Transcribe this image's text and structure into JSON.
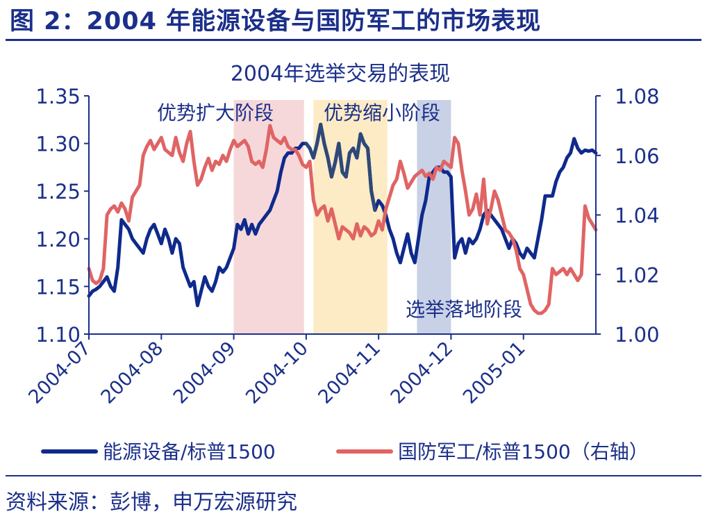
{
  "figure_title": "图 2：2004 年能源设备与国防军工的市场表现",
  "source_note": "资料来源：彭博，申万宏源研究",
  "colors": {
    "primary": "#1b2f8a",
    "energy": "#0f2a8c",
    "energy_dark_segment": "#2f4878",
    "defense": "#e06464",
    "phase_expansion": "#f6d8da",
    "phase_contraction": "#fcebc4",
    "phase_landing": "#c9d1e6"
  },
  "chart_data": {
    "type": "line",
    "title": "2004年选举交易的表现",
    "x_tick_labels": [
      "2004-07",
      "2004-08",
      "2004-09",
      "2004-10",
      "2004-11",
      "2004-12",
      "2005-01"
    ],
    "x_range": [
      0,
      7
    ],
    "x_unit": "months since 2004-07-01",
    "left_axis": {
      "ylim": [
        1.1,
        1.35
      ],
      "ticks": [
        "1.10",
        "1.15",
        "1.20",
        "1.25",
        "1.30",
        "1.35"
      ]
    },
    "right_axis": {
      "ylim": [
        1.0,
        1.08
      ],
      "ticks": [
        "1.00",
        "1.02",
        "1.04",
        "1.06",
        "1.08"
      ]
    },
    "phases": [
      {
        "label": "优势扩大阶段",
        "x_start": 2.0,
        "x_end": 2.97,
        "color_key": "phase_expansion"
      },
      {
        "label": "优势缩小阶段",
        "x_start": 3.1,
        "x_end": 4.12,
        "color_key": "phase_contraction"
      },
      {
        "label": "选举落地阶段",
        "x_start": 4.53,
        "x_end": 5.0,
        "color_key": "phase_landing"
      }
    ],
    "legend_position": "bottom",
    "series": [
      {
        "name": "能源设备/标普1500",
        "axis": "left",
        "color_key": "energy",
        "x": [
          0.0,
          0.05,
          0.1,
          0.15,
          0.2,
          0.25,
          0.3,
          0.35,
          0.4,
          0.45,
          0.5,
          0.55,
          0.6,
          0.65,
          0.7,
          0.75,
          0.8,
          0.85,
          0.9,
          0.95,
          1.0,
          1.05,
          1.1,
          1.15,
          1.2,
          1.25,
          1.3,
          1.35,
          1.4,
          1.45,
          1.5,
          1.55,
          1.6,
          1.65,
          1.7,
          1.75,
          1.8,
          1.85,
          1.9,
          1.95,
          2.0,
          2.05,
          2.1,
          2.15,
          2.2,
          2.25,
          2.3,
          2.35,
          2.4,
          2.45,
          2.5,
          2.55,
          2.6,
          2.65,
          2.7,
          2.75,
          2.8,
          2.85,
          2.9,
          2.95,
          3.0,
          3.05,
          3.1,
          3.15,
          3.2,
          3.25,
          3.3,
          3.35,
          3.4,
          3.45,
          3.5,
          3.55,
          3.6,
          3.65,
          3.7,
          3.75,
          3.8,
          3.85,
          3.9,
          3.95,
          4.0,
          4.05,
          4.1,
          4.15,
          4.2,
          4.25,
          4.3,
          4.35,
          4.4,
          4.45,
          4.5,
          4.55,
          4.6,
          4.65,
          4.7,
          4.75,
          4.8,
          4.85,
          4.9,
          4.95,
          5.0,
          5.05,
          5.1,
          5.15,
          5.2,
          5.25,
          5.3,
          5.35,
          5.4,
          5.45,
          5.5,
          5.55,
          5.6,
          5.65,
          5.7,
          5.75,
          5.8,
          5.85,
          5.9,
          5.95,
          6.0,
          6.05,
          6.1,
          6.15,
          6.2,
          6.25,
          6.3,
          6.35,
          6.4,
          6.45,
          6.5,
          6.55,
          6.6,
          6.65,
          6.7,
          6.75,
          6.8,
          6.85,
          6.9,
          6.95,
          7.0
        ],
        "y": [
          1.14,
          1.145,
          1.147,
          1.15,
          1.155,
          1.16,
          1.15,
          1.145,
          1.17,
          1.22,
          1.215,
          1.21,
          1.2,
          1.195,
          1.19,
          1.185,
          1.2,
          1.21,
          1.215,
          1.205,
          1.195,
          1.21,
          1.2,
          1.185,
          1.2,
          1.195,
          1.17,
          1.16,
          1.15,
          1.155,
          1.13,
          1.145,
          1.16,
          1.15,
          1.145,
          1.155,
          1.17,
          1.165,
          1.17,
          1.18,
          1.19,
          1.215,
          1.21,
          1.22,
          1.205,
          1.215,
          1.205,
          1.215,
          1.22,
          1.225,
          1.23,
          1.24,
          1.25,
          1.27,
          1.285,
          1.29,
          1.29,
          1.295,
          1.295,
          1.3,
          1.3,
          1.295,
          1.285,
          1.3,
          1.32,
          1.3,
          1.285,
          1.265,
          1.28,
          1.3,
          1.27,
          1.265,
          1.29,
          1.295,
          1.285,
          1.31,
          1.3,
          1.295,
          1.25,
          1.23,
          1.24,
          1.235,
          1.225,
          1.21,
          1.2,
          1.185,
          1.175,
          1.19,
          1.205,
          1.185,
          1.175,
          1.2,
          1.225,
          1.24,
          1.265,
          1.27,
          1.275,
          1.275,
          1.27,
          1.27,
          1.265,
          1.18,
          1.195,
          1.2,
          1.185,
          1.2,
          1.195,
          1.2,
          1.21,
          1.225,
          1.23,
          1.225,
          1.22,
          1.215,
          1.21,
          1.2,
          1.19,
          1.2,
          1.195,
          1.185,
          1.18,
          1.19,
          1.185,
          1.18,
          1.2,
          1.22,
          1.245,
          1.245,
          1.245,
          1.26,
          1.27,
          1.275,
          1.285,
          1.29,
          1.305,
          1.295,
          1.29,
          1.293,
          1.292,
          1.293,
          1.29
        ]
      },
      {
        "name": "国防军工/标普1500（右轴）",
        "axis": "right",
        "color_key": "defense",
        "x": [
          0.0,
          0.05,
          0.1,
          0.15,
          0.2,
          0.25,
          0.3,
          0.35,
          0.4,
          0.45,
          0.5,
          0.55,
          0.6,
          0.65,
          0.7,
          0.75,
          0.8,
          0.85,
          0.9,
          0.95,
          1.0,
          1.05,
          1.1,
          1.15,
          1.2,
          1.25,
          1.3,
          1.35,
          1.4,
          1.45,
          1.5,
          1.55,
          1.6,
          1.65,
          1.7,
          1.75,
          1.8,
          1.85,
          1.9,
          1.95,
          2.0,
          2.05,
          2.1,
          2.15,
          2.2,
          2.25,
          2.3,
          2.35,
          2.4,
          2.45,
          2.5,
          2.55,
          2.6,
          2.65,
          2.7,
          2.75,
          2.8,
          2.85,
          2.9,
          2.95,
          3.0,
          3.05,
          3.1,
          3.15,
          3.2,
          3.25,
          3.3,
          3.35,
          3.4,
          3.45,
          3.5,
          3.55,
          3.6,
          3.65,
          3.7,
          3.75,
          3.8,
          3.85,
          3.9,
          3.95,
          4.0,
          4.05,
          4.1,
          4.15,
          4.2,
          4.25,
          4.3,
          4.35,
          4.4,
          4.45,
          4.5,
          4.55,
          4.6,
          4.65,
          4.7,
          4.75,
          4.8,
          4.85,
          4.9,
          4.95,
          5.0,
          5.05,
          5.1,
          5.15,
          5.2,
          5.25,
          5.3,
          5.35,
          5.4,
          5.45,
          5.5,
          5.55,
          5.6,
          5.65,
          5.7,
          5.75,
          5.8,
          5.85,
          5.9,
          5.95,
          6.0,
          6.05,
          6.1,
          6.15,
          6.2,
          6.25,
          6.3,
          6.35,
          6.4,
          6.45,
          6.5,
          6.55,
          6.6,
          6.65,
          6.7,
          6.75,
          6.8,
          6.85,
          6.9,
          6.95,
          7.0
        ],
        "y": [
          1.022,
          1.018,
          1.017,
          1.018,
          1.022,
          1.04,
          1.042,
          1.043,
          1.041,
          1.044,
          1.042,
          1.038,
          1.046,
          1.048,
          1.05,
          1.06,
          1.063,
          1.065,
          1.062,
          1.064,
          1.066,
          1.062,
          1.061,
          1.06,
          1.066,
          1.061,
          1.058,
          1.064,
          1.068,
          1.058,
          1.05,
          1.052,
          1.056,
          1.059,
          1.055,
          1.058,
          1.057,
          1.06,
          1.058,
          1.062,
          1.065,
          1.063,
          1.064,
          1.065,
          1.063,
          1.058,
          1.057,
          1.058,
          1.056,
          1.062,
          1.07,
          1.066,
          1.065,
          1.064,
          1.066,
          1.063,
          1.062,
          1.062,
          1.06,
          1.057,
          1.056,
          1.058,
          1.045,
          1.04,
          1.042,
          1.043,
          1.038,
          1.042,
          1.037,
          1.032,
          1.036,
          1.035,
          1.034,
          1.032,
          1.037,
          1.033,
          1.036,
          1.035,
          1.033,
          1.034,
          1.038,
          1.035,
          1.042,
          1.046,
          1.05,
          1.052,
          1.058,
          1.054,
          1.049,
          1.051,
          1.053,
          1.054,
          1.055,
          1.053,
          1.054,
          1.052,
          1.056,
          1.055,
          1.058,
          1.057,
          1.056,
          1.066,
          1.064,
          1.055,
          1.048,
          1.04,
          1.042,
          1.047,
          1.04,
          1.052,
          1.037,
          1.042,
          1.048,
          1.045,
          1.04,
          1.035,
          1.034,
          1.032,
          1.028,
          1.022,
          1.02,
          1.015,
          1.01,
          1.008,
          1.007,
          1.007,
          1.008,
          1.01,
          1.022,
          1.02,
          1.021,
          1.022,
          1.02,
          1.022,
          1.02,
          1.018,
          1.02,
          1.043,
          1.039,
          1.037,
          1.035
        ]
      }
    ]
  }
}
